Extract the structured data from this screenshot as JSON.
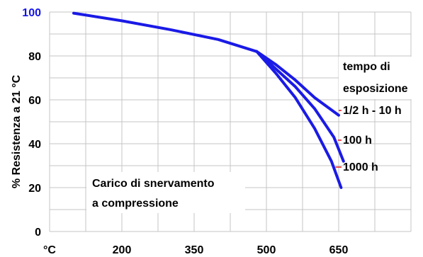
{
  "chart_data": {
    "type": "line",
    "ylabel": "% Resistenza a 21 °C",
    "x_tick_labels": [
      "°C",
      "200",
      "350",
      "500",
      "650"
    ],
    "x_ticks": [
      50,
      200,
      350,
      500,
      650
    ],
    "xlim": [
      50,
      800
    ],
    "y_tick_labels": [
      "0",
      "20",
      "40",
      "60",
      "80",
      "100"
    ],
    "y_ticks": [
      0,
      20,
      40,
      60,
      80,
      100
    ],
    "ylim": [
      0,
      100
    ],
    "grid": true,
    "line_color": "#1a1ae6",
    "label_color": "#e01818",
    "annotation_lines": [
      "Carico di snervamento",
      "a compressione"
    ],
    "legend_title_lines": [
      "tempo di",
      "esposizione"
    ],
    "series": [
      {
        "name": "1/2 h - 10 h",
        "x": [
          100,
          200,
          300,
          400,
          480,
          520,
          560,
          600,
          650
        ],
        "y": [
          99.5,
          96,
          92,
          87.5,
          82,
          76,
          69,
          61,
          53
        ]
      },
      {
        "name": "100 h",
        "x": [
          480,
          520,
          560,
          600,
          640,
          660
        ],
        "y": [
          82,
          74,
          66,
          56,
          43,
          32
        ]
      },
      {
        "name": "1000 h",
        "x": [
          480,
          520,
          560,
          600,
          635,
          655
        ],
        "y": [
          82,
          72,
          61,
          47,
          32,
          20
        ]
      }
    ]
  }
}
